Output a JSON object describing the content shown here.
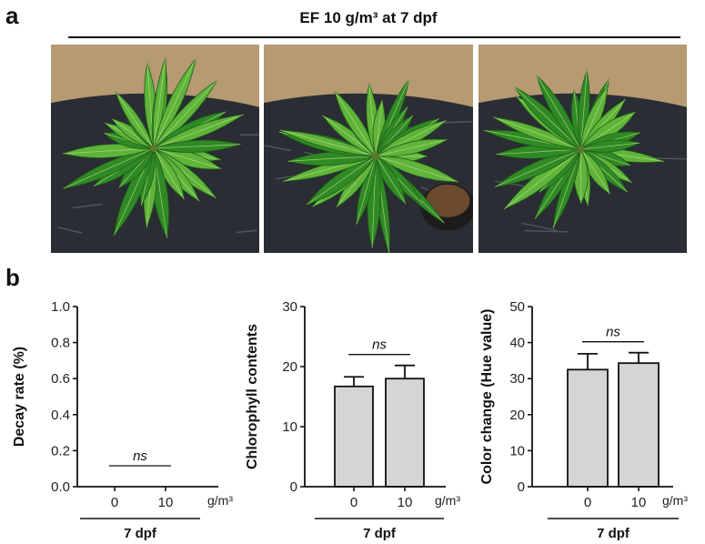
{
  "panel_a": {
    "letter": "a",
    "title": "EF 10 g/m³ at 7 dpf",
    "photos": [
      {
        "subject": "mango-plant-icon",
        "variant": 1
      },
      {
        "subject": "mango-plant-icon",
        "variant": 2
      },
      {
        "subject": "mango-plant-icon",
        "variant": 3
      }
    ],
    "colors": {
      "leaf": "#2f8a25",
      "leaf_light": "#5fb43a",
      "soil": "#b59a72",
      "mulch": "#2a2d33"
    }
  },
  "panel_b": {
    "letter": "b"
  },
  "chart_data": [
    {
      "type": "bar",
      "categories": [
        "0",
        "10"
      ],
      "values": [
        0,
        0
      ],
      "errors": [
        0,
        0
      ],
      "ylabel": "Decay rate (%)",
      "ylim": [
        0,
        1.0
      ],
      "yticks": [
        "0.0",
        "0.2",
        "0.4",
        "0.6",
        "0.8",
        "1.0"
      ],
      "unit": "g/m³",
      "group_label": "7 dpf",
      "significance": "ns",
      "bar_color": "#d4d5d6"
    },
    {
      "type": "bar",
      "categories": [
        "0",
        "10"
      ],
      "values": [
        16.7,
        18.0
      ],
      "errors": [
        1.6,
        2.2
      ],
      "ylabel": "Chlorophyll contents",
      "ylim": [
        0,
        30
      ],
      "yticks": [
        "0",
        "10",
        "20",
        "30"
      ],
      "unit": "g/m³",
      "group_label": "7 dpf",
      "significance": "ns",
      "bar_color": "#d4d5d6"
    },
    {
      "type": "bar",
      "categories": [
        "0",
        "10"
      ],
      "values": [
        32.5,
        34.3
      ],
      "errors": [
        4.4,
        2.9
      ],
      "ylabel": "Color change (Hue value)",
      "ylim": [
        0,
        50
      ],
      "yticks": [
        "0",
        "10",
        "20",
        "30",
        "40",
        "50"
      ],
      "unit": "g/m³",
      "group_label": "7 dpf",
      "significance": "ns",
      "bar_color": "#d4d5d6"
    }
  ]
}
